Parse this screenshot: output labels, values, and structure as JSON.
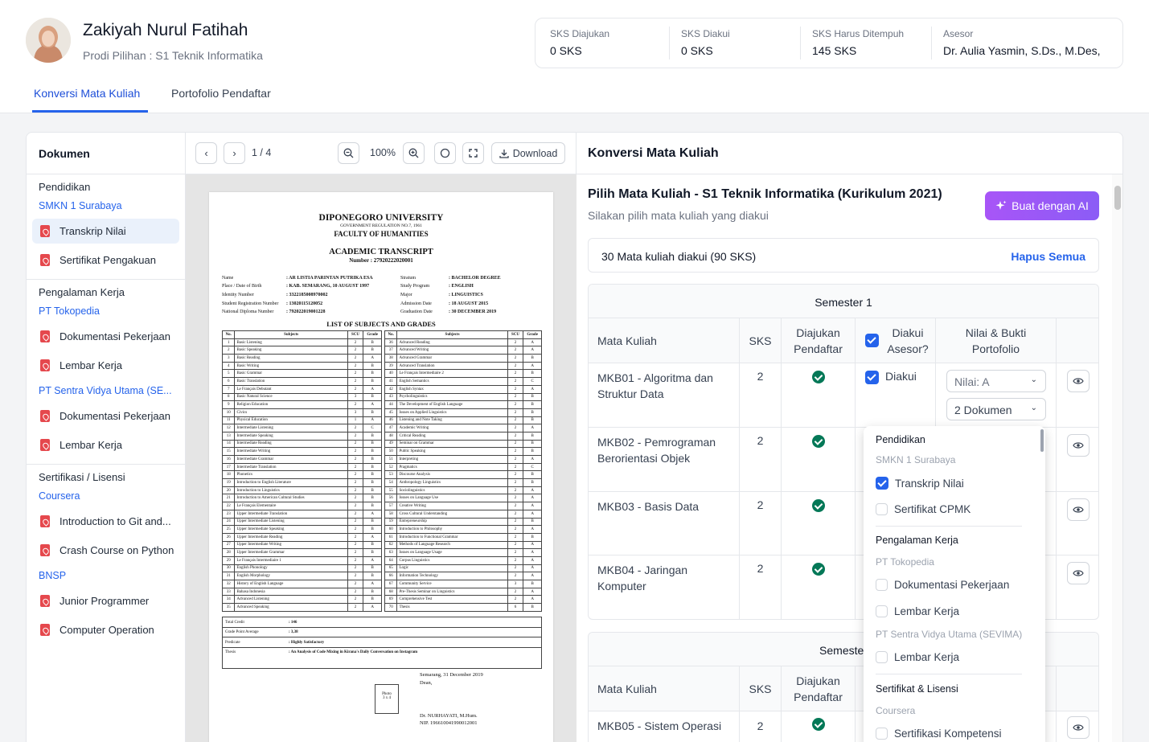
{
  "header": {
    "name": "Zakiyah Nurul Fatihah",
    "prodi": "Prodi Pilihan : S1 Teknik Informatika",
    "stats": [
      {
        "label": "SKS Diajukan",
        "value": "0 SKS"
      },
      {
        "label": "SKS Diakui",
        "value": "0 SKS"
      },
      {
        "label": "SKS Harus Ditempuh",
        "value": "145 SKS"
      },
      {
        "label": "Asesor",
        "value": "Dr. Aulia Yasmin, S.Ds., M.Des,"
      }
    ],
    "tabs": [
      "Konversi Mata Kuliah",
      "Portofolio Pendaftar"
    ]
  },
  "documents": {
    "title": "Dokumen",
    "sections": [
      {
        "title": "Pendidikan",
        "org": "SMKN 1 Surabaya",
        "items": [
          "Transkrip Nilai",
          "Sertifikat Pengakuan"
        ]
      },
      {
        "title": "Pengalaman Kerja",
        "orgs": [
          {
            "org": "PT Tokopedia",
            "items": [
              "Dokumentasi Pekerjaan",
              "Lembar Kerja"
            ]
          },
          {
            "org": "PT Sentra Vidya Utama (SE...",
            "items": [
              "Dokumentasi Pekerjaan",
              "Lembar Kerja"
            ]
          }
        ]
      },
      {
        "title": "Sertifikasi / Lisensi",
        "orgs": [
          {
            "org": "Coursera",
            "items": [
              "Introduction to Git and...",
              "Crash Course on Python"
            ]
          },
          {
            "org": "BNSP",
            "items": [
              "Junior Programmer",
              "Computer Operation"
            ]
          }
        ]
      }
    ]
  },
  "viewer": {
    "page": "1 / 4",
    "zoom": "100%",
    "download": "Download",
    "doc": {
      "uni": "DIPONEGORO UNIVERSITY",
      "reg": "GOVERNMENT REGULATION NO.7, 1961",
      "faculty": "FACULTY OF HUMANITIES",
      "title": "ACADEMIC TRANSCRIPT",
      "number": "Number : 27920222020001",
      "left_fields": [
        [
          "Name",
          ": AR LISTIA PARINTAN PUTRIKA ESA"
        ],
        [
          "Place / Date of Birth",
          ": KAB. SEMARANG, 10 AUGUST 1997"
        ],
        [
          "Identity Number",
          ": 3322185008970002"
        ],
        [
          "Student Registration Number",
          ": 13020115120052"
        ],
        [
          "National Diploma Number",
          ": 792022019001228"
        ]
      ],
      "right_fields": [
        [
          "Stratum",
          ": BACHELOR DEGREE"
        ],
        [
          "Study Program",
          ": ENGLISH"
        ],
        [
          "Major",
          ": LINGUISTICS"
        ],
        [
          "Admission Date",
          ": 18 AUGUST 2015"
        ],
        [
          "Graduation Date",
          ": 30 DECEMBER 2019"
        ]
      ],
      "list_title": "LIST OF SUBJECTS AND GRADES",
      "col_headers": [
        "No.",
        "Subjects",
        "SCU",
        "Grade"
      ],
      "subjects_left": [
        [
          "1",
          "Basic Listening",
          "2",
          "B"
        ],
        [
          "2",
          "Basic Speaking",
          "2",
          "B"
        ],
        [
          "3",
          "Basic Reading",
          "2",
          "A"
        ],
        [
          "4",
          "Basic Writing",
          "2",
          "B"
        ],
        [
          "5",
          "Basic Grammar",
          "2",
          "B"
        ],
        [
          "6",
          "Basic Translation",
          "2",
          "B"
        ],
        [
          "7",
          "Le Français Debutant",
          "2",
          "A"
        ],
        [
          "8",
          "Basic Natural Science",
          "3",
          "B"
        ],
        [
          "9",
          "Religion Education",
          "2",
          "A"
        ],
        [
          "10",
          "Civics",
          "3",
          "B"
        ],
        [
          "11",
          "Physical Education",
          "1",
          "A"
        ],
        [
          "12",
          "Intermediate Listening",
          "2",
          "C"
        ],
        [
          "13",
          "Intermediate Speaking",
          "2",
          "B"
        ],
        [
          "14",
          "Intermediate Reading",
          "2",
          "B"
        ],
        [
          "15",
          "Intermediate Writing",
          "2",
          "B"
        ],
        [
          "16",
          "Intermediate Grammar",
          "2",
          "B"
        ],
        [
          "17",
          "Intermediate Translation",
          "2",
          "B"
        ],
        [
          "18",
          "Phonetics",
          "2",
          "B"
        ],
        [
          "19",
          "Introduction to English Literature",
          "2",
          "B"
        ],
        [
          "20",
          "Introduction to Linguistics",
          "2",
          "B"
        ],
        [
          "21",
          "Introduction to American Cultural Studies",
          "2",
          "B"
        ],
        [
          "22",
          "Le Français Elementaire",
          "2",
          "B"
        ],
        [
          "23",
          "Upper Intermediate Translation",
          "2",
          "A"
        ],
        [
          "24",
          "Upper Intermediate Listening",
          "2",
          "B"
        ],
        [
          "25",
          "Upper Intermediate Speaking",
          "2",
          "B"
        ],
        [
          "26",
          "Upper Intermediate Reading",
          "2",
          "A"
        ],
        [
          "27",
          "Upper Intermediate Writing",
          "2",
          "B"
        ],
        [
          "28",
          "Upper Intermediate Grammar",
          "2",
          "B"
        ],
        [
          "29",
          "Le Français Intermediaire 1",
          "2",
          "A"
        ],
        [
          "30",
          "English Phonology",
          "2",
          "B"
        ],
        [
          "31",
          "English Morphology",
          "2",
          "B"
        ],
        [
          "32",
          "History of English Language",
          "2",
          "A"
        ],
        [
          "33",
          "Bahasa Indonesia",
          "2",
          "B"
        ],
        [
          "34",
          "Advanced Listening",
          "2",
          "B"
        ],
        [
          "35",
          "Advanced Speaking",
          "2",
          "A"
        ]
      ],
      "subjects_right": [
        [
          "36",
          "Advanced Reading",
          "2",
          "A"
        ],
        [
          "37",
          "Advanced Writing",
          "2",
          "A"
        ],
        [
          "38",
          "Advanced Grammar",
          "2",
          "B"
        ],
        [
          "39",
          "Advanced Translation",
          "2",
          "A"
        ],
        [
          "40",
          "Le Français Intermediaire 2",
          "2",
          "B"
        ],
        [
          "41",
          "English Semantics",
          "2",
          "C"
        ],
        [
          "42",
          "English Syntax",
          "2",
          "A"
        ],
        [
          "43",
          "Psycholinguistics",
          "2",
          "B"
        ],
        [
          "44",
          "The Development of English Language",
          "2",
          "B"
        ],
        [
          "45",
          "Issues on Applied Linguistics",
          "2",
          "B"
        ],
        [
          "46",
          "Listening and Note Taking",
          "2",
          "B"
        ],
        [
          "47",
          "Academic Writing",
          "2",
          "A"
        ],
        [
          "48",
          "Critical Reading",
          "2",
          "B"
        ],
        [
          "49",
          "Seminar on Grammar",
          "2",
          "B"
        ],
        [
          "50",
          "Public Speaking",
          "2",
          "B"
        ],
        [
          "51",
          "Interpreting",
          "2",
          "A"
        ],
        [
          "52",
          "Pragmatics",
          "2",
          "C"
        ],
        [
          "53",
          "Discourse Analysis",
          "2",
          "B"
        ],
        [
          "54",
          "Anthropology Linguistics",
          "2",
          "B"
        ],
        [
          "55",
          "Sociolinguistics",
          "2",
          "A"
        ],
        [
          "56",
          "Issues on Language Use",
          "2",
          "A"
        ],
        [
          "57",
          "Creative Writing",
          "2",
          "A"
        ],
        [
          "58",
          "Cross Cultural Understanding",
          "2",
          "A"
        ],
        [
          "59",
          "Entrepreneurship",
          "2",
          "B"
        ],
        [
          "60",
          "Introduction to Philosophy",
          "2",
          "A"
        ],
        [
          "61",
          "Introduction to Functional Grammar",
          "2",
          "B"
        ],
        [
          "62",
          "Methods of Language Research",
          "2",
          "A"
        ],
        [
          "63",
          "Issues on Language Usage",
          "2",
          "A"
        ],
        [
          "64",
          "Corpus Linguistics",
          "2",
          "A"
        ],
        [
          "65",
          "Logic",
          "2",
          "A"
        ],
        [
          "66",
          "Information Technology",
          "2",
          "A"
        ],
        [
          "67",
          "Community Service",
          "3",
          "B"
        ],
        [
          "68",
          "Pre-Thesis Seminar on Linguistics",
          "2",
          "A"
        ],
        [
          "69",
          "Comprehensive Test",
          "2",
          "A"
        ],
        [
          "70",
          "Thesis",
          "6",
          "B"
        ]
      ],
      "summary": [
        [
          "Total Credit",
          ": 146"
        ],
        [
          "Grade Point Average",
          ": 3,38"
        ],
        [
          "Predicate",
          ": Highly Satisfactory"
        ],
        [
          "Thesis",
          ": An Analysis of Code Mixing in Kirana's Daily Conversation on Instagram"
        ]
      ],
      "place_date": "Semarang, 31 December 2019",
      "dean": "Dean,",
      "photo": "Photo\n3 x 4",
      "signer": "Dr. NURHAYATI, M.Hum.",
      "nip": "NIP. 196610041990012001"
    }
  },
  "konversi": {
    "title": "Konversi Mata Kuliah",
    "heading": "Pilih Mata Kuliah - S1 Teknik Informatika (Kurikulum 2021)",
    "subheading": "Silakan pilih mata kuliah yang diakui",
    "ai_button": "Buat dengan AI",
    "summary": "30 Mata kuliah diakui (90 SKS)",
    "clear_all": "Hapus Semua",
    "semester1": "Semester 1",
    "semester2": "Semester",
    "columns": {
      "mk": "Mata Kuliah",
      "sks": "SKS",
      "diajukan": "Diajukan Pendaftar",
      "diakui": "Diakui Asesor?",
      "nilai": "Nilai & Bukti Portofolio"
    },
    "rows": [
      {
        "name": "MKB01 - Algoritma dan Struktur Data",
        "sks": "2",
        "diakui": "Diakui"
      },
      {
        "name": "MKB02 - Pemrograman Berorientasi Objek",
        "sks": "2"
      },
      {
        "name": "MKB03 - Basis Data",
        "sks": "2"
      },
      {
        "name": "MKB04 - Jaringan Komputer",
        "sks": "2"
      }
    ],
    "row5": {
      "name": "MKB05 - Sistem Operasi",
      "sks": "2"
    },
    "nilai_select": "Nilai: A",
    "dokumen_select": "2 Dokumen"
  },
  "dropdown": {
    "groups": [
      {
        "title": "Pendidikan",
        "org": "SMKN 1 Surabaya",
        "options": [
          {
            "label": "Transkrip Nilai",
            "checked": true
          },
          {
            "label": "Sertifikat CPMK",
            "checked": false
          }
        ]
      },
      {
        "title": "Pengalaman Kerja",
        "org": "PT Tokopedia",
        "options": [
          {
            "label": "Dokumentasi Pekerjaan",
            "checked": false
          },
          {
            "label": "Lembar Kerja",
            "checked": false
          }
        ],
        "org2": "PT Sentra Vidya Utama (SEVIMA)",
        "options2": [
          {
            "label": "Lembar Kerja",
            "checked": false
          }
        ]
      },
      {
        "title": "Sertifikat & Lisensi",
        "org": "Coursera",
        "options": [
          {
            "label": "Sertifikasi Kompetensi",
            "checked": false
          }
        ]
      }
    ]
  },
  "colors": {
    "accent": "#2563eb",
    "ai_gradient_start": "#a855f7",
    "pdf_icon": "#e5484d",
    "check_green": "#047857"
  }
}
